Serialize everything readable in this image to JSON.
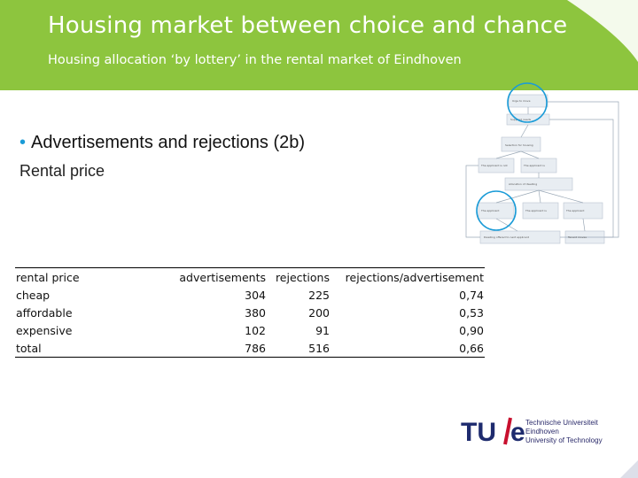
{
  "header": {
    "title": "Housing market between choice and chance",
    "subtitle": "Housing allocation ‘by lottery’ in the rental market of Eindhoven",
    "background": "#8dc53e"
  },
  "content": {
    "bullet": "Advertisements and rejections (2b)",
    "subheading": "Rental price"
  },
  "table": {
    "headers": [
      "rental price",
      "advertisements",
      "rejections",
      "rejections/advertisement"
    ],
    "rows": [
      [
        "cheap",
        "304",
        "225",
        "0,74"
      ],
      [
        "affordable",
        "380",
        "200",
        "0,53"
      ],
      [
        "expensive",
        "102",
        "91",
        "0,90"
      ],
      [
        "total",
        "786",
        "516",
        "0,66"
      ]
    ]
  },
  "logo": {
    "line1": "Technische Universiteit",
    "line2": "Eindhoven",
    "line3": "University of Technology",
    "colors": {
      "blue": "#1e2b6e",
      "red": "#c8102e"
    }
  },
  "diagram": {
    "highlight_color": "#1a9bd7",
    "box_color": "#e8edf2"
  }
}
